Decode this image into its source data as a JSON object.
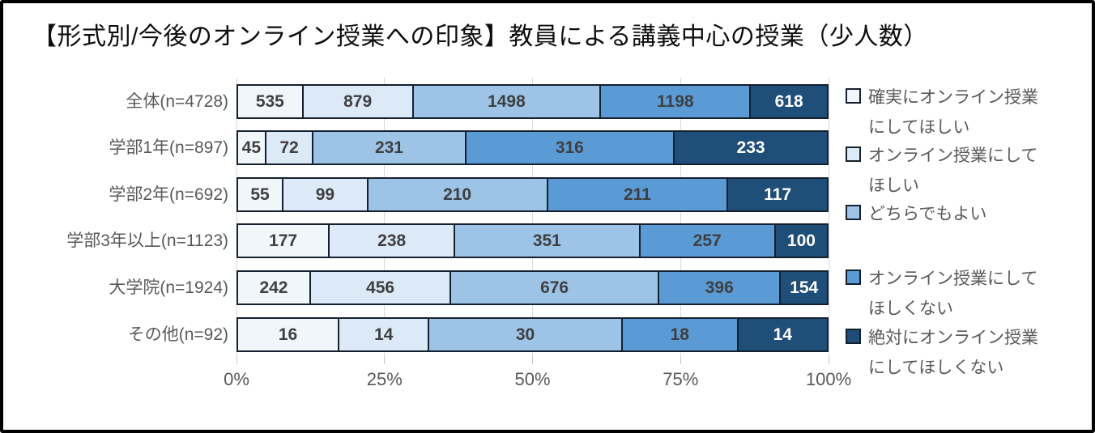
{
  "title": "【形式別/今後のオンライン授業への印象】教員による講義中心の授業（少人数）",
  "chart_data": {
    "type": "bar",
    "variant": "stacked-100-horizontal",
    "title": "【形式別/今後のオンライン授業への印象】教員による講義中心の授業（少人数）",
    "categories": [
      "全体(n=4728)",
      "学部1年(n=897)",
      "学部2年(n=692)",
      "学部3年以上(n=1123)",
      "大学院(n=1924)",
      "その他(n=92)"
    ],
    "series": [
      {
        "name": "確実にオンライン授業にしてほしい",
        "color": "#f1f6fb",
        "label_color": "#3f3f3f",
        "values": [
          535,
          45,
          55,
          177,
          242,
          16
        ]
      },
      {
        "name": "オンライン授業にしてほしい",
        "color": "#dce9f6",
        "label_color": "#3f3f3f",
        "values": [
          879,
          72,
          99,
          238,
          456,
          14
        ]
      },
      {
        "name": "どちらでもよい",
        "color": "#9dc3e6",
        "label_color": "#3f3f3f",
        "values": [
          1498,
          231,
          210,
          351,
          676,
          30
        ]
      },
      {
        "name": "オンライン授業にしてほしくない",
        "color": "#5b9bd5",
        "label_color": "#3f3f3f",
        "values": [
          1198,
          316,
          211,
          257,
          396,
          18
        ]
      },
      {
        "name": "絶対にオンライン授業にしてほしくない",
        "color": "#1f4e79",
        "label_color": "#ffffff",
        "values": [
          618,
          233,
          117,
          100,
          154,
          14
        ]
      }
    ],
    "x_axis": {
      "tick_labels": [
        "0%",
        "25%",
        "50%",
        "75%",
        "100%"
      ],
      "range": [
        0,
        100
      ],
      "unit": "percent"
    },
    "grid": true,
    "legend_position": "right",
    "legend_items": [
      {
        "lines": [
          "確実にオンライン授業",
          "にしてほしい"
        ],
        "color": "#f1f6fb"
      },
      {
        "lines": [
          "オンライン授業にして",
          "ほしい"
        ],
        "color": "#dce9f6"
      },
      {
        "lines": [
          "どちらでもよい"
        ],
        "color": "#9dc3e6"
      },
      {
        "lines": [
          "オンライン授業にして",
          "ほしくない"
        ],
        "color": "#5b9bd5"
      },
      {
        "lines": [
          "絶対にオンライン授業",
          "にしてほしくない"
        ],
        "color": "#1f4e79"
      }
    ],
    "bar_border_color": "#15202e"
  }
}
